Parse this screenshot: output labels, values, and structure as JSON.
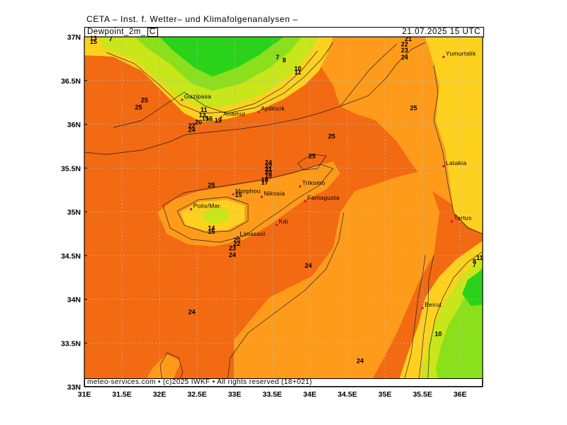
{
  "header": {
    "title": "CETA – Inst. f. Wetter– und Klimafolgenanalysen –",
    "parameter": "Dewpoint_2m_",
    "unit": "C",
    "valid_time": "21.07.2025  15 UTC"
  },
  "footer": {
    "copyright": "meteo-services.com • (c)2025 IWKF • All rights reserved (18+021)"
  },
  "axes": {
    "lon_ticks": [
      "31E",
      "31.5E",
      "32E",
      "32.5E",
      "33E",
      "33.5E",
      "34E",
      "34.5E",
      "35E",
      "35.5E",
      "36E"
    ],
    "lat_ticks": [
      "37N",
      "36.5N",
      "36N",
      "35.5N",
      "35N",
      "34.5N",
      "34N",
      "33.5N",
      "33N"
    ]
  },
  "colors": {
    "orange_dark": "#f26a12",
    "orange_light": "#ff9b1a",
    "yellow": "#ffd11f",
    "yellow_green": "#c8e61a",
    "light_green": "#8ae01a",
    "green": "#2bd21a",
    "grid": "#b8b8b8"
  },
  "cities": [
    {
      "name": "Gazipasa",
      "lon": 32.3,
      "lat": 36.28
    },
    {
      "name": "Anamur",
      "lon": 32.82,
      "lat": 36.08
    },
    {
      "name": "Aydincik",
      "lon": 33.32,
      "lat": 36.14
    },
    {
      "name": "Yumurtalik",
      "lon": 35.78,
      "lat": 36.77
    },
    {
      "name": "Latakia",
      "lon": 35.78,
      "lat": 35.52
    },
    {
      "name": "Tartus",
      "lon": 35.89,
      "lat": 34.89
    },
    {
      "name": "Beirut",
      "lon": 35.5,
      "lat": 33.9
    },
    {
      "name": "Trikomo",
      "lon": 33.87,
      "lat": 35.29
    },
    {
      "name": "Morphou",
      "lon": 32.98,
      "lat": 35.2
    },
    {
      "name": "Nikosia",
      "lon": 33.36,
      "lat": 35.17
    },
    {
      "name": "Famagusta",
      "lon": 33.94,
      "lat": 35.12
    },
    {
      "name": "Polis/Mar.",
      "lon": 32.42,
      "lat": 35.03
    },
    {
      "name": "Kiti",
      "lon": 33.56,
      "lat": 34.85
    },
    {
      "name": "Limassol",
      "lon": 33.04,
      "lat": 34.71
    }
  ],
  "contour_labels": [
    {
      "text": "7",
      "lon": 31.35,
      "lat": 36.95
    },
    {
      "text": "13",
      "lon": 31.12,
      "lat": 36.96
    },
    {
      "text": "15",
      "lon": 31.12,
      "lat": 36.92
    },
    {
      "text": "7",
      "lon": 33.57,
      "lat": 36.74
    },
    {
      "text": "8",
      "lon": 33.66,
      "lat": 36.71
    },
    {
      "text": "10",
      "lon": 33.84,
      "lat": 36.61
    },
    {
      "text": "11",
      "lon": 33.84,
      "lat": 36.57
    },
    {
      "text": "21",
      "lon": 35.31,
      "lat": 36.95
    },
    {
      "text": "22",
      "lon": 35.26,
      "lat": 36.89
    },
    {
      "text": "23",
      "lon": 35.26,
      "lat": 36.82
    },
    {
      "text": "24",
      "lon": 35.26,
      "lat": 36.74
    },
    {
      "text": "25",
      "lon": 31.8,
      "lat": 36.25
    },
    {
      "text": "25",
      "lon": 31.72,
      "lat": 36.17
    },
    {
      "text": "25",
      "lon": 35.38,
      "lat": 36.16
    },
    {
      "text": "11",
      "lon": 32.59,
      "lat": 36.14
    },
    {
      "text": "13",
      "lon": 32.57,
      "lat": 36.08
    },
    {
      "text": "15",
      "lon": 32.61,
      "lat": 36.04
    },
    {
      "text": "16",
      "lon": 32.66,
      "lat": 36.04
    },
    {
      "text": "19",
      "lon": 32.78,
      "lat": 36.02
    },
    {
      "text": "20",
      "lon": 32.52,
      "lat": 36.0
    },
    {
      "text": "22",
      "lon": 32.43,
      "lat": 35.96
    },
    {
      "text": "24",
      "lon": 32.43,
      "lat": 35.91
    },
    {
      "text": "25",
      "lon": 34.29,
      "lat": 35.84
    },
    {
      "text": "25",
      "lon": 34.03,
      "lat": 35.61
    },
    {
      "text": "24",
      "lon": 33.45,
      "lat": 35.54
    },
    {
      "text": "22",
      "lon": 33.45,
      "lat": 35.5
    },
    {
      "text": "21",
      "lon": 33.45,
      "lat": 35.46
    },
    {
      "text": "20",
      "lon": 33.45,
      "lat": 35.43
    },
    {
      "text": "19",
      "lon": 33.45,
      "lat": 35.39
    },
    {
      "text": "18",
      "lon": 33.4,
      "lat": 35.34
    },
    {
      "text": "17",
      "lon": 33.4,
      "lat": 35.31
    },
    {
      "text": "25",
      "lon": 32.69,
      "lat": 35.28
    },
    {
      "text": "15",
      "lon": 33.05,
      "lat": 35.17
    },
    {
      "text": "14",
      "lon": 32.69,
      "lat": 34.79
    },
    {
      "text": "15",
      "lon": 32.69,
      "lat": 34.75
    },
    {
      "text": "20",
      "lon": 33.03,
      "lat": 34.65
    },
    {
      "text": "22",
      "lon": 33.03,
      "lat": 34.61
    },
    {
      "text": "23",
      "lon": 32.97,
      "lat": 34.56
    },
    {
      "text": "24",
      "lon": 32.97,
      "lat": 34.48
    },
    {
      "text": "24",
      "lon": 33.98,
      "lat": 34.36
    },
    {
      "text": "24",
      "lon": 32.43,
      "lat": 33.83
    },
    {
      "text": "10",
      "lon": 35.71,
      "lat": 33.58
    },
    {
      "text": "24",
      "lon": 34.67,
      "lat": 33.27
    },
    {
      "text": "11",
      "lon": 36.26,
      "lat": 34.45
    },
    {
      "text": "8",
      "lon": 36.19,
      "lat": 34.41
    },
    {
      "text": "7",
      "lon": 36.19,
      "lat": 34.37
    }
  ]
}
